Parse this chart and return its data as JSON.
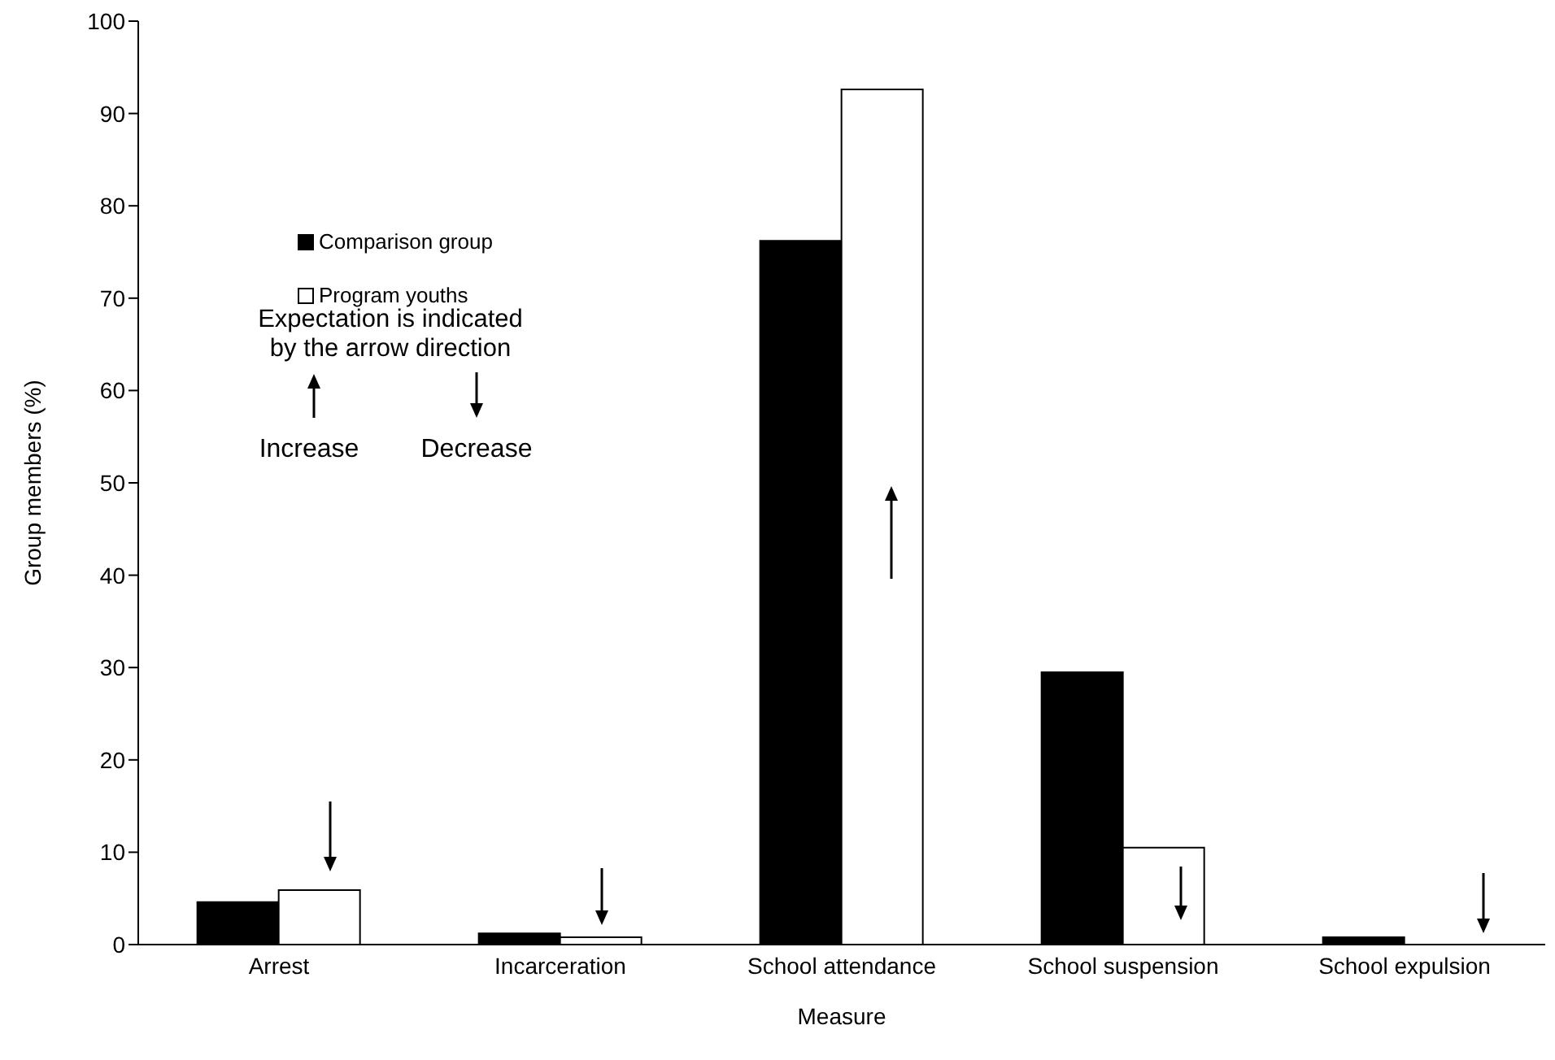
{
  "chart_data": {
    "type": "bar",
    "xlabel": "Measure",
    "ylabel": "Group members (%)",
    "categories": [
      "Arrest",
      "Incarceration",
      "School attendance",
      "School suspension",
      "School expulsion"
    ],
    "series": [
      {
        "name": "Comparison group",
        "color": "#000000",
        "values": [
          4.6,
          1.2,
          76.2,
          29.5,
          0.8
        ]
      },
      {
        "name": "Program youths",
        "color": "#ffffff",
        "values": [
          5.9,
          0.8,
          92.6,
          10.5,
          0
        ]
      }
    ],
    "ylim": [
      0,
      100
    ],
    "yticks": [
      0,
      10,
      20,
      30,
      40,
      50,
      60,
      70,
      80,
      90,
      100
    ],
    "legend": "top left",
    "annotations": [
      "Expectation is indicated by the arrow direction",
      "Increase",
      "Decrease"
    ]
  }
}
